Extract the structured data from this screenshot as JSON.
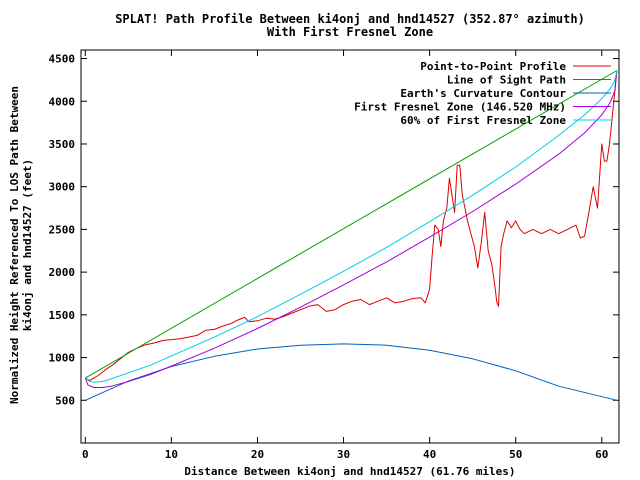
{
  "chart_data": {
    "type": "line",
    "title": "SPLAT! Path Profile Between ki4onj and hnd14527 (352.87° azimuth)",
    "subtitle": "With First Fresnel Zone",
    "xlabel": "Distance Between ki4onj and hnd14527 (61.76 miles)",
    "ylabel_line1": "Normalized Height Referenced To LOS Path Between",
    "ylabel_line2": "ki4onj and hnd14527 (feet)",
    "xlim": [
      -0.5,
      62
    ],
    "ylim": [
      0,
      4600
    ],
    "x_ticks": [
      "0",
      "10",
      "20",
      "30",
      "40",
      "50",
      "60"
    ],
    "y_ticks": [
      "500",
      "1000",
      "1500",
      "2000",
      "2500",
      "3000",
      "3500",
      "4000",
      "4500"
    ],
    "legend_position": "top-right",
    "grid": false,
    "series": [
      {
        "name": "Point-to-Point Profile",
        "color": "#e00000",
        "x": [
          0,
          0.5,
          1,
          1.5,
          2,
          2.5,
          3,
          3.5,
          4,
          4.5,
          5,
          6,
          7,
          8,
          9,
          10,
          11,
          12,
          13,
          14,
          15,
          16,
          17,
          17.5,
          18,
          18.5,
          19,
          20,
          21,
          22,
          23,
          24,
          25,
          26,
          27,
          28,
          29,
          30,
          31,
          32,
          33,
          34,
          35,
          36,
          37,
          38,
          39,
          39.5,
          40,
          40.3,
          40.6,
          41,
          41.3,
          41.6,
          42,
          42.3,
          42.6,
          42.9,
          43.2,
          43.5,
          43.8,
          44,
          44.4,
          44.8,
          45.2,
          45.6,
          46,
          46.4,
          46.8,
          47.2,
          47.5,
          47.8,
          48,
          48.3,
          48.6,
          49,
          49.5,
          50,
          50.5,
          51,
          52,
          53,
          54,
          55,
          56,
          57,
          57.5,
          58,
          58.5,
          59,
          59.5,
          60,
          60.3,
          60.6,
          60.9,
          61.2,
          61.5,
          61.76
        ],
        "y": [
          760,
          730,
          760,
          790,
          830,
          870,
          900,
          940,
          980,
          1020,
          1060,
          1110,
          1150,
          1170,
          1200,
          1210,
          1220,
          1240,
          1260,
          1320,
          1330,
          1370,
          1400,
          1430,
          1450,
          1470,
          1420,
          1430,
          1460,
          1450,
          1480,
          1520,
          1560,
          1600,
          1620,
          1540,
          1560,
          1620,
          1660,
          1680,
          1620,
          1660,
          1700,
          1640,
          1660,
          1690,
          1700,
          1640,
          1800,
          2200,
          2550,
          2500,
          2300,
          2600,
          2750,
          3100,
          2900,
          2700,
          3250,
          3250,
          2900,
          2800,
          2600,
          2450,
          2300,
          2050,
          2350,
          2700,
          2250,
          2100,
          1900,
          1650,
          1600,
          2300,
          2450,
          2600,
          2520,
          2600,
          2500,
          2450,
          2500,
          2450,
          2500,
          2450,
          2500,
          2550,
          2400,
          2420,
          2700,
          3000,
          2750,
          3500,
          3300,
          3300,
          3500,
          3800,
          4100,
          4360
        ]
      },
      {
        "name": "Line of Sight Path",
        "color": "#00a000",
        "x": [
          0,
          61.76
        ],
        "y": [
          760,
          4360
        ]
      },
      {
        "name": "Earth's Curvature Contour",
        "color": "#0060c0",
        "x": [
          0,
          5,
          10,
          15,
          20,
          25,
          30,
          35,
          40,
          45,
          50,
          55,
          61.76
        ],
        "y": [
          500,
          725,
          895,
          1015,
          1100,
          1145,
          1160,
          1145,
          1085,
          985,
          845,
          665,
          500
        ]
      },
      {
        "name": "First Fresnel Zone (146.520 MHz)",
        "color": "#a000e0",
        "x": [
          0,
          0.3,
          1,
          2,
          3,
          5,
          7.5,
          10,
          15,
          20,
          25,
          30,
          35,
          40,
          45,
          50,
          55,
          58,
          60,
          61,
          61.5,
          61.76
        ],
        "y": [
          760,
          680,
          650,
          650,
          665,
          720,
          800,
          900,
          1110,
          1340,
          1590,
          1850,
          2120,
          2410,
          2710,
          3030,
          3380,
          3630,
          3840,
          3990,
          4120,
          4360
        ]
      },
      {
        "name": "60% of First Fresnel Zone",
        "color": "#00d0e0",
        "x": [
          0,
          0.5,
          1,
          2,
          3,
          5,
          7.5,
          10,
          15,
          20,
          25,
          30,
          35,
          40,
          45,
          50,
          55,
          58,
          60,
          61,
          61.5,
          61.76
        ],
        "y": [
          760,
          720,
          710,
          720,
          750,
          820,
          910,
          1020,
          1240,
          1480,
          1740,
          2010,
          2290,
          2590,
          2900,
          3230,
          3600,
          3840,
          4030,
          4150,
          4240,
          4360
        ]
      }
    ]
  }
}
